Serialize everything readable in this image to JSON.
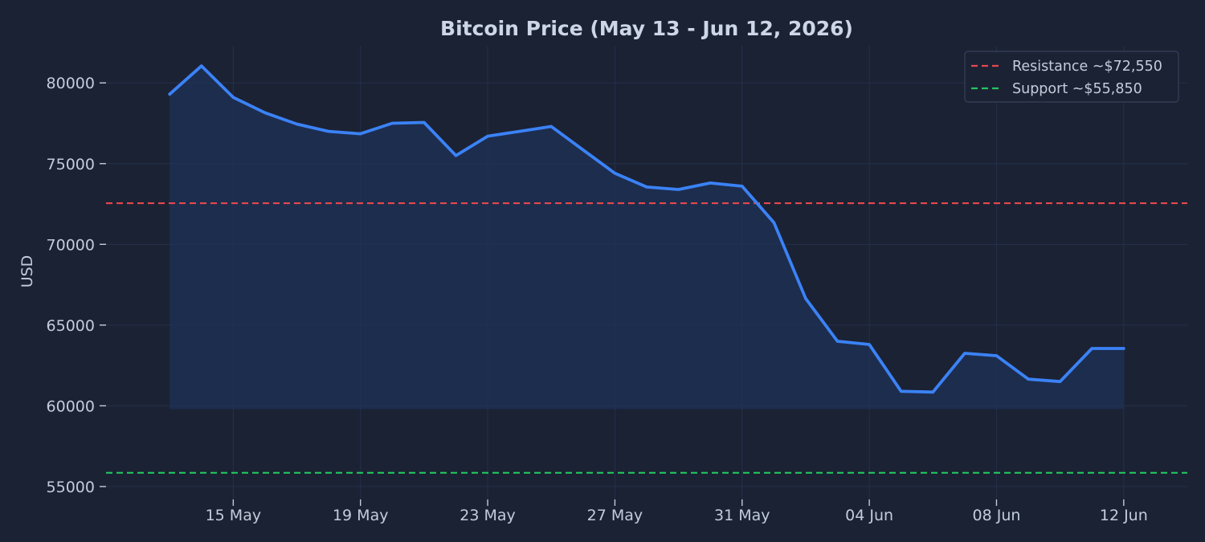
{
  "chart_data": {
    "type": "line",
    "title": "Bitcoin Price (May 13 - Jun 12, 2026)",
    "xlabel": "",
    "ylabel": "USD",
    "ylim": [
      54200,
      82300
    ],
    "xlim": [
      "2026-05-11",
      "2026-06-14"
    ],
    "yticks": [
      55000,
      60000,
      65000,
      70000,
      75000,
      80000
    ],
    "xticks": [
      {
        "date": "2026-05-15",
        "label": "15 May"
      },
      {
        "date": "2026-05-19",
        "label": "19 May"
      },
      {
        "date": "2026-05-23",
        "label": "23 May"
      },
      {
        "date": "2026-05-27",
        "label": "27 May"
      },
      {
        "date": "2026-05-31",
        "label": "31 May"
      },
      {
        "date": "2026-06-04",
        "label": "04 Jun"
      },
      {
        "date": "2026-06-08",
        "label": "08 Jun"
      },
      {
        "date": "2026-06-12",
        "label": "12 Jun"
      }
    ],
    "grid": true,
    "legend_position": "top-right",
    "fill_baseline": 59800,
    "series": [
      {
        "x": [
          "2026-05-13",
          "2026-05-14",
          "2026-05-15",
          "2026-05-16",
          "2026-05-17",
          "2026-05-18",
          "2026-05-19",
          "2026-05-20",
          "2026-05-21",
          "2026-05-22",
          "2026-05-23",
          "2026-05-24",
          "2026-05-25",
          "2026-05-26",
          "2026-05-27",
          "2026-05-28",
          "2026-05-29",
          "2026-05-30",
          "2026-05-31",
          "2026-06-01",
          "2026-06-02",
          "2026-06-03",
          "2026-06-04",
          "2026-06-05",
          "2026-06-06",
          "2026-06-07",
          "2026-06-08",
          "2026-06-09",
          "2026-06-10",
          "2026-06-11",
          "2026-06-12"
        ],
        "values": [
          79300,
          81050,
          79100,
          78150,
          77450,
          77000,
          76850,
          77500,
          77550,
          75500,
          76700,
          77000,
          77300,
          75850,
          74400,
          73550,
          73400,
          73800,
          73600,
          71350,
          66650,
          64000,
          63800,
          60900,
          60850,
          63250,
          63100,
          61650,
          61500,
          63550,
          63550
        ],
        "color": "#3b82f6"
      }
    ],
    "reference_lines": [
      {
        "name": "Resistance ~$72,550",
        "value": 72550,
        "color": "#e5484d",
        "style": "dashed"
      },
      {
        "name": "Support ~$55,850",
        "value": 55850,
        "color": "#22c55e",
        "style": "dashed"
      }
    ],
    "colors": {
      "background": "#1b2234",
      "grid": "#25304a",
      "axis": "#c3ccdb",
      "area_fill": "#1f3257"
    }
  }
}
